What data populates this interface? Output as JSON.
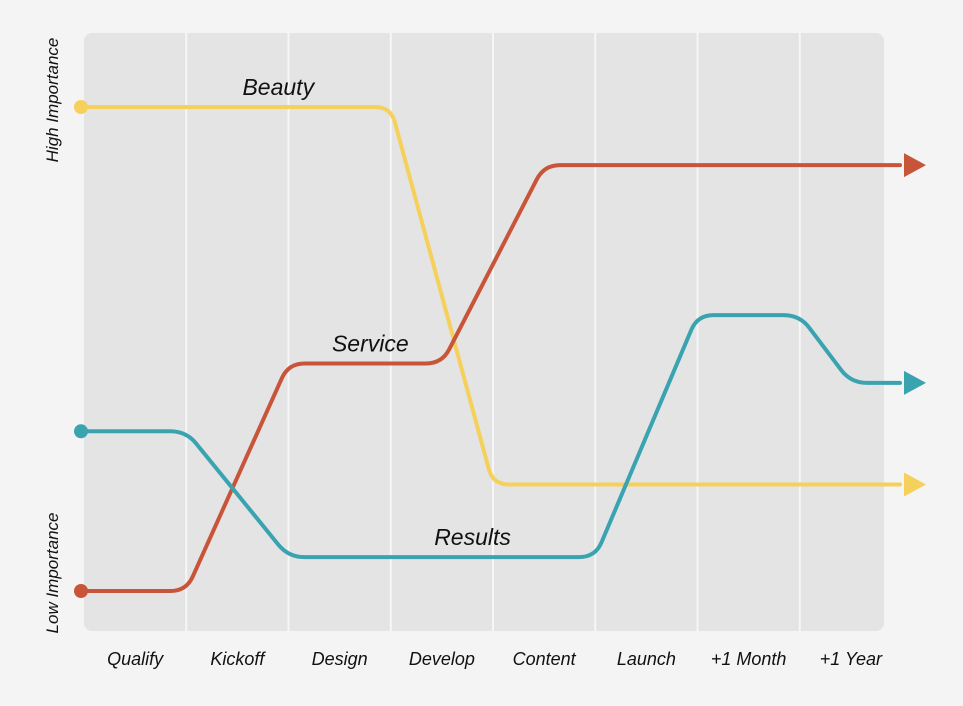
{
  "chart_data": {
    "type": "line",
    "title": "",
    "xlabel": "",
    "ylabel": "",
    "categories": [
      "Qualify",
      "Kickoff",
      "Design",
      "Develop",
      "Content",
      "Launch",
      "+1 Month",
      "+1 Year"
    ],
    "y_axis_labels": {
      "high": "High Importance",
      "low": "Low Importance"
    },
    "ylim": [
      0,
      100
    ],
    "grid": true,
    "series": [
      {
        "name": "Beauty",
        "color": "#f5d05a",
        "points": [
          [
            0,
            100
          ],
          [
            3,
            100
          ],
          [
            4,
            22
          ],
          [
            8,
            22
          ]
        ]
      },
      {
        "name": "Service",
        "color": "#c8553a",
        "points": [
          [
            0,
            0
          ],
          [
            1,
            0
          ],
          [
            2,
            47
          ],
          [
            3.5,
            47
          ],
          [
            4.5,
            88
          ],
          [
            8,
            88
          ]
        ]
      },
      {
        "name": "Results",
        "color": "#3aa3b0",
        "points": [
          [
            0,
            33
          ],
          [
            1,
            33
          ],
          [
            2,
            7
          ],
          [
            5,
            7
          ],
          [
            6,
            57
          ],
          [
            7,
            57
          ],
          [
            7.5,
            43
          ],
          [
            8,
            43
          ]
        ]
      }
    ]
  }
}
